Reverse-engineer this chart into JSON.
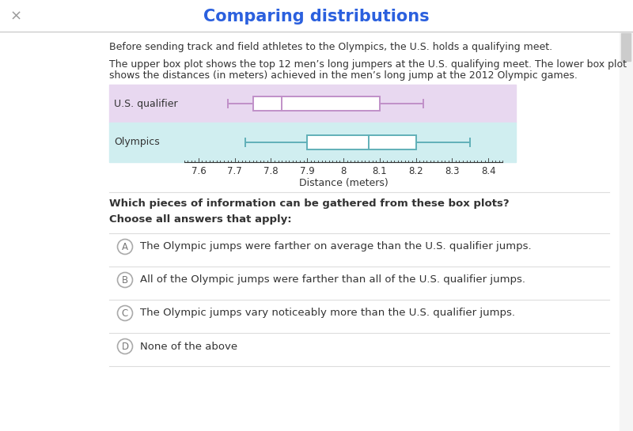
{
  "title": "Comparing distributions",
  "title_color": "#2B60DE",
  "bg_color": "#ffffff",
  "intro_text1": "Before sending track and field athletes to the Olympics, the U.S. holds a qualifying meet.",
  "intro_text2a": "The upper box plot shows the top 12 men’s long jumpers at the U.S. qualifying meet. The lower box plot",
  "intro_text2b": "shows the distances (in meters) achieved in the men’s long jump at the 2012 Olympic games.",
  "us_qualifier": {
    "whisker_low": 7.68,
    "q1": 7.75,
    "median": 7.83,
    "q3": 8.1,
    "whisker_high": 8.22,
    "bg_color": "#e8d8f0",
    "box_color": "#c090c8",
    "label": "U.S. qualifier"
  },
  "olympics": {
    "whisker_low": 7.73,
    "q1": 7.9,
    "median": 8.07,
    "q3": 8.2,
    "whisker_high": 8.35,
    "bg_color": "#d0eef0",
    "box_color": "#60b0b8",
    "label": "Olympics"
  },
  "xmin": 7.55,
  "xmax": 8.45,
  "xticks": [
    7.6,
    7.7,
    7.8,
    7.9,
    8.0,
    8.1,
    8.2,
    8.3,
    8.4
  ],
  "xlabel": "Distance (meters)",
  "question_text": "Which pieces of information can be gathered from these box plots?",
  "choose_text": "Choose all answers that apply:",
  "options": [
    {
      "label": "A",
      "text": "The Olympic jumps were farther on average than the U.S. qualifier jumps."
    },
    {
      "label": "B",
      "text": "All of the Olympic jumps were farther than all of the U.S. qualifier jumps."
    },
    {
      "label": "C",
      "text": "The Olympic jumps vary noticeably more than the U.S. qualifier jumps."
    },
    {
      "label": "D",
      "text": "None of the above"
    }
  ]
}
